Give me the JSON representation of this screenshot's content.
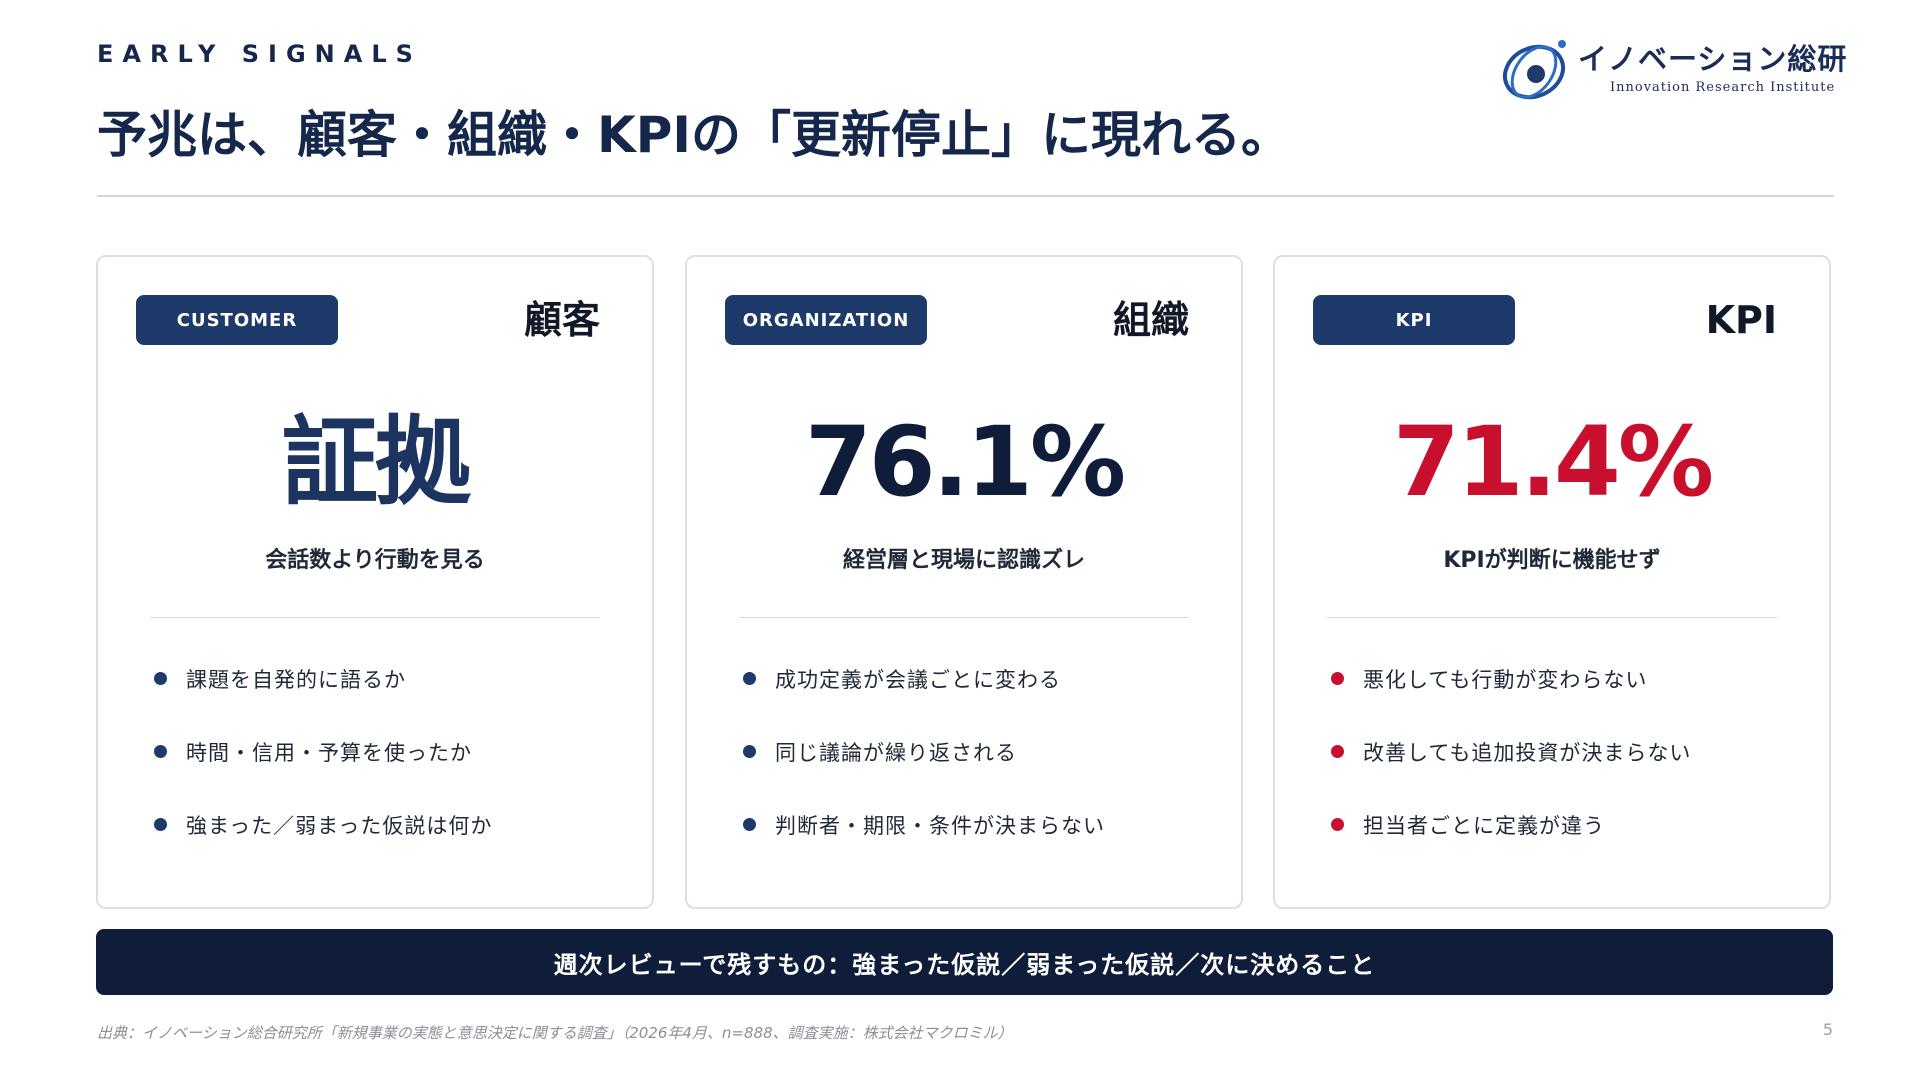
{
  "header": {
    "eyebrow": "EARLY SIGNALS",
    "title": "予兆は、顧客・組織・KPIの「更新停止」に現れる。"
  },
  "logo": {
    "name": "イノベーション総研",
    "subtitle": "Innovation Research Institute"
  },
  "cards": [
    {
      "tag": "CUSTOMER",
      "title": "顧客",
      "headline": "証拠",
      "headline_color": "#1e3460",
      "subtitle": "会話数より行動を見る",
      "bullet_color": "#1e3a6a",
      "bullets": [
        "課題を自発的に語るか",
        "時間・信用・予算を使ったか",
        "強まった／弱まった仮説は何か"
      ]
    },
    {
      "tag": "ORGANIZATION",
      "title": "組織",
      "headline": "76.1%",
      "headline_color": "#0f1d3a",
      "subtitle": "経営層と現場に認識ズレ",
      "bullet_color": "#1e3a6a",
      "bullets": [
        "成功定義が会議ごとに変わる",
        "同じ議論が繰り返される",
        "判断者・期限・条件が決まらない"
      ]
    },
    {
      "tag": "KPI",
      "title": "KPI",
      "headline": "71.4%",
      "headline_color": "#c8102e",
      "subtitle": "KPIが判断に機能せず",
      "bullet_color": "#c8102e",
      "bullets": [
        "悪化しても行動が変わらない",
        "改善しても追加投資が決まらない",
        "担当者ごとに定義が違う"
      ]
    }
  ],
  "banner": {
    "text": "週次レビューで残すもの：強まった仮説／弱まった仮説／次に決めること"
  },
  "footer": {
    "source": "出典：イノベーション総合研究所「新規事業の実態と意思決定に関する調査」（2026年4月、n=888、調査実施：株式会社マクロミル）",
    "page_number": "5"
  },
  "colors": {
    "navy": "#15284b",
    "accent_red": "#c8102e",
    "banner_bg": "#0f1d3a"
  }
}
